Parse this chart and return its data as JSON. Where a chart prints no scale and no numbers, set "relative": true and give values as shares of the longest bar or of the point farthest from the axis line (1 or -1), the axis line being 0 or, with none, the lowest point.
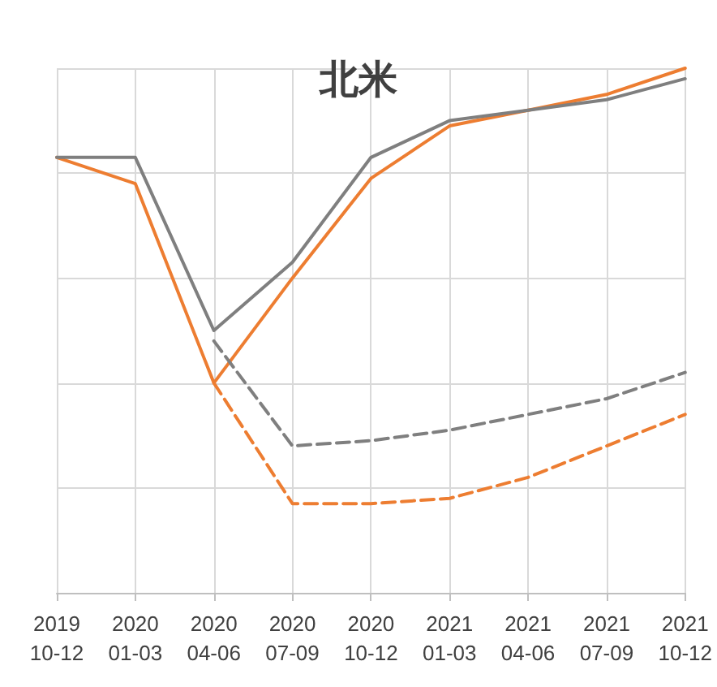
{
  "chart_data": {
    "type": "line",
    "title": "北米",
    "relative": true,
    "grid": true,
    "marker": "none",
    "categories": [
      "2019\n10-12",
      "2020\n01-03",
      "2020\n04-06",
      "2020\n07-09",
      "2020\n10-12",
      "2021\n01-03",
      "2021\n04-06",
      "2021\n07-09",
      "2021\n10-12"
    ],
    "series": [
      {
        "color": "#ed7d31",
        "line_style": "solid",
        "values": [
          0.83,
          0.78,
          0.4,
          0.6,
          0.79,
          0.89,
          0.92,
          0.95,
          1
        ]
      },
      {
        "color": "#7f7f7f",
        "line_style": "solid",
        "values": [
          0.83,
          0.83,
          0.5,
          0.63,
          0.83,
          0.9,
          0.92,
          0.94,
          0.98
        ]
      },
      {
        "color": "#7f7f7f",
        "line_style": "dashed",
        "values": [
          null,
          null,
          0.48,
          0.28,
          0.29,
          0.31,
          0.34,
          0.37,
          0.42
        ]
      },
      {
        "color": "#ed7d31",
        "line_style": "dashed",
        "values": [
          null,
          null,
          0.4,
          0.17,
          0.17,
          0.18,
          0.22,
          0.28,
          0.34
        ]
      }
    ]
  }
}
